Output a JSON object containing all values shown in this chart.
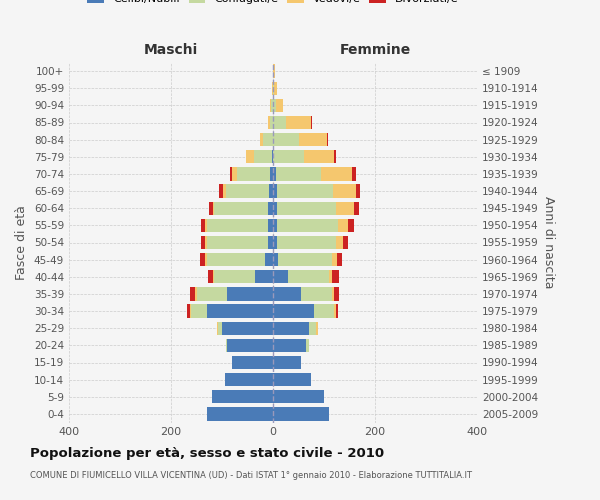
{
  "age_groups": [
    "0-4",
    "5-9",
    "10-14",
    "15-19",
    "20-24",
    "25-29",
    "30-34",
    "35-39",
    "40-44",
    "45-49",
    "50-54",
    "55-59",
    "60-64",
    "65-69",
    "70-74",
    "75-79",
    "80-84",
    "85-89",
    "90-94",
    "95-99",
    "100+"
  ],
  "birth_years": [
    "2005-2009",
    "2000-2004",
    "1995-1999",
    "1990-1994",
    "1985-1989",
    "1980-1984",
    "1975-1979",
    "1970-1974",
    "1965-1969",
    "1960-1964",
    "1955-1959",
    "1950-1954",
    "1945-1949",
    "1940-1944",
    "1935-1939",
    "1930-1934",
    "1925-1929",
    "1920-1924",
    "1915-1919",
    "1910-1914",
    "≤ 1909"
  ],
  "colors": {
    "celibi": "#4a7bb7",
    "coniugati": "#c5d9a0",
    "vedovi": "#f5c76e",
    "divorziati": "#cc2222"
  },
  "males": {
    "celibi": [
      130,
      120,
      95,
      80,
      90,
      100,
      130,
      90,
      35,
      15,
      10,
      10,
      10,
      8,
      5,
      2,
      0,
      0,
      0,
      0,
      0
    ],
    "coniugati": [
      0,
      0,
      0,
      0,
      3,
      8,
      30,
      60,
      80,
      115,
      120,
      120,
      105,
      85,
      65,
      35,
      20,
      5,
      3,
      0,
      0
    ],
    "vedovi": [
      0,
      0,
      0,
      0,
      0,
      2,
      3,
      3,
      3,
      3,
      3,
      3,
      3,
      5,
      10,
      15,
      5,
      5,
      2,
      1,
      0
    ],
    "divorziati": [
      0,
      0,
      0,
      0,
      0,
      0,
      5,
      10,
      10,
      10,
      8,
      8,
      8,
      8,
      5,
      0,
      0,
      0,
      0,
      0,
      0
    ]
  },
  "females": {
    "celibi": [
      110,
      100,
      75,
      55,
      65,
      70,
      80,
      55,
      30,
      10,
      8,
      8,
      8,
      8,
      5,
      0,
      0,
      0,
      0,
      0,
      0
    ],
    "coniugati": [
      0,
      0,
      0,
      0,
      5,
      15,
      40,
      60,
      80,
      105,
      115,
      120,
      115,
      110,
      90,
      60,
      50,
      25,
      5,
      2,
      0
    ],
    "vedovi": [
      0,
      0,
      0,
      0,
      0,
      3,
      3,
      5,
      5,
      10,
      15,
      20,
      35,
      45,
      60,
      60,
      55,
      50,
      15,
      5,
      3
    ],
    "divorziati": [
      0,
      0,
      0,
      0,
      0,
      0,
      5,
      10,
      15,
      10,
      10,
      10,
      10,
      8,
      8,
      3,
      3,
      2,
      0,
      0,
      0
    ]
  },
  "xlim": [
    -400,
    400
  ],
  "xticks": [
    -400,
    -200,
    0,
    200,
    400
  ],
  "xticklabels": [
    "400",
    "200",
    "0",
    "200",
    "400"
  ],
  "title": "Popolazione per età, sesso e stato civile - 2010",
  "subtitle": "COMUNE DI FIUMICELLO VILLA VICENTINA (UD) - Dati ISTAT 1° gennaio 2010 - Elaborazione TUTTITALIA.IT",
  "ylabel_left": "Fasce di età",
  "ylabel_right": "Anni di nascita",
  "header_left": "Maschi",
  "header_right": "Femmine",
  "bg_color": "#f5f5f5",
  "grid_color": "#cccccc"
}
